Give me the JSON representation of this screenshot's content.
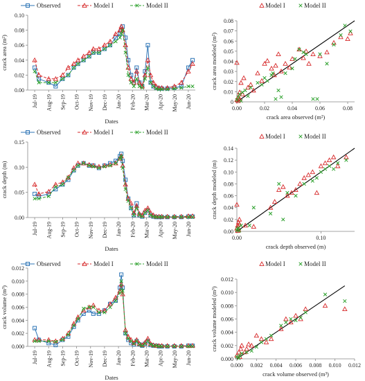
{
  "date_ticks": [
    "Jul-19",
    "Aug-19",
    "Sep-19",
    "Oct-19",
    "Nov-19",
    "Dec-19",
    "Jan-20",
    "Feb-20",
    "Mar-20",
    "Apr-20",
    "May-20",
    "Jun-20"
  ],
  "colors": {
    "observed": "#2e75b6",
    "model1": "#d62728",
    "model2": "#2ca02c",
    "fit": "#000000"
  },
  "legend": {
    "observed": "Observed",
    "model1": "Model I",
    "model2": "Model II"
  },
  "chart_data": [
    {
      "type": "line",
      "xlabel": "Dates",
      "ylabel": "crack area (m²)",
      "ylim": [
        0,
        0.1
      ],
      "yticks": [
        "0.00",
        "0.02",
        "0.04",
        "0.06",
        "0.08",
        "0.10"
      ],
      "x": [
        0,
        0.3,
        1,
        1.5,
        2,
        2.4,
        2.8,
        3.1,
        3.5,
        3.9,
        4.2,
        4.6,
        5,
        5.4,
        5.8,
        6.1,
        6.2,
        6.3,
        6.5,
        6.7,
        6.9,
        7.1,
        7.3,
        7.5,
        7.7,
        7.9,
        8.1,
        8.3,
        8.5,
        8.7,
        8.9,
        9.1,
        9.5,
        10,
        10.5,
        11,
        11.3
      ],
      "series": [
        {
          "name": "Observed",
          "values": [
            0.03,
            0.015,
            0.01,
            0.005,
            0.015,
            0.02,
            0.03,
            0.035,
            0.04,
            0.045,
            0.05,
            0.05,
            0.055,
            0.06,
            0.07,
            0.075,
            0.08,
            0.085,
            0.07,
            0.04,
            0.02,
            0.01,
            0.03,
            0.01,
            0.005,
            0.025,
            0.06,
            0.01,
            0.005,
            0.003,
            0.002,
            0.002,
            0.002,
            0.003,
            0.005,
            0.03,
            0.04
          ]
        },
        {
          "name": "Model I",
          "values": [
            0.04,
            0.02,
            0.015,
            0.015,
            0.02,
            0.03,
            0.035,
            0.04,
            0.045,
            0.05,
            0.055,
            0.055,
            0.06,
            0.065,
            0.075,
            0.08,
            0.085,
            0.08,
            0.06,
            0.03,
            0.015,
            0.01,
            0.025,
            0.01,
            0.005,
            0.02,
            0.04,
            0.02,
            0.01,
            0.005,
            0.003,
            0.003,
            0.003,
            0.005,
            0.01,
            0.025,
            0.035
          ]
        },
        {
          "name": "Model II",
          "values": [
            0.025,
            0.01,
            0.01,
            0.01,
            0.015,
            0.02,
            0.03,
            0.035,
            0.04,
            0.045,
            0.05,
            0.05,
            0.055,
            0.06,
            0.065,
            0.07,
            0.075,
            0.08,
            0.05,
            0.02,
            0.01,
            0.005,
            0.015,
            0.005,
            0.003,
            0.015,
            0.03,
            0.01,
            0.005,
            0.002,
            0.001,
            0.001,
            0.001,
            0.002,
            0.003,
            0.005,
            0.005
          ]
        }
      ]
    },
    {
      "type": "scatter",
      "xlabel": "crack area observed (m²)",
      "ylabel": "crack area modeled (m²)",
      "xlim": [
        0,
        0.085
      ],
      "ylim": [
        0,
        0.085
      ],
      "xticks": [
        "0.00",
        "0.02",
        "0.04",
        "0.06",
        "0.08"
      ],
      "yticks": [
        "0",
        "0.01",
        "0.02",
        "0.03",
        "0.04",
        "0.05",
        "0.06",
        "0.07",
        "0.08"
      ],
      "series": [
        {
          "name": "Model I",
          "x": [
            0,
            0,
            0.001,
            0.002,
            0.003,
            0.005,
            0.008,
            0.01,
            0.015,
            0.02,
            0.022,
            0.025,
            0.028,
            0.03,
            0.032,
            0.035,
            0.04,
            0.045,
            0.05,
            0.055,
            0.06,
            0.065,
            0.07,
            0.075,
            0.08,
            0.082,
            0.002,
            0.001,
            0.004,
            0.012,
            0.018,
            0.027,
            0.038,
            0.048,
            0.052
          ],
          "y": [
            0.041,
            0.002,
            0.005,
            0.01,
            0.02,
            0.025,
            0.015,
            0.018,
            0.03,
            0.04,
            0.043,
            0.035,
            0.038,
            0.05,
            0.032,
            0.04,
            0.045,
            0.055,
            0.053,
            0.05,
            0.048,
            0.052,
            0.062,
            0.068,
            0.066,
            0.072,
            0.003,
            0.001,
            0.008,
            0.012,
            0.022,
            0.028,
            0.036,
            0.046,
            0.04
          ]
        },
        {
          "name": "Model II",
          "x": [
            0,
            0.001,
            0.002,
            0.004,
            0.006,
            0.01,
            0.015,
            0.02,
            0.022,
            0.025,
            0.028,
            0.03,
            0.032,
            0.035,
            0.04,
            0.045,
            0.05,
            0.055,
            0.06,
            0.065,
            0.07,
            0.075,
            0.078,
            0.082,
            0.003,
            0.008,
            0.018,
            0.026,
            0.042,
            0.048,
            0.058
          ],
          "y": [
            0.002,
            0.005,
            0.008,
            0.01,
            0.012,
            0.015,
            0.02,
            0.025,
            0.022,
            0.028,
            0.003,
            0.012,
            0.005,
            0.03,
            0.035,
            0.055,
            0.05,
            0.003,
            0.05,
            0.04,
            0.06,
            0.07,
            0.08,
            0.074,
            0.001,
            0.006,
            0.018,
            0.03,
            0.045,
            0.052,
            0.003
          ]
        }
      ]
    },
    {
      "type": "line",
      "xlabel": "Dates",
      "ylabel": "crack depth (m)",
      "ylim": [
        0,
        0.16
      ],
      "yticks": [
        "0.00",
        "0.05",
        "0.10",
        "0.15"
      ],
      "x": [
        0,
        0.3,
        1,
        1.5,
        2,
        2.4,
        2.8,
        3.1,
        3.5,
        3.9,
        4.2,
        4.6,
        5,
        5.4,
        5.8,
        6.1,
        6.2,
        6.3,
        6.5,
        6.7,
        6.9,
        7.1,
        7.3,
        7.5,
        7.7,
        7.9,
        8.1,
        8.3,
        8.5,
        8.7,
        8.9,
        9.1,
        9.5,
        10,
        10.5,
        11,
        11.3
      ],
      "series": [
        {
          "name": "Observed",
          "values": [
            0.05,
            0.045,
            0.05,
            0.06,
            0.07,
            0.08,
            0.1,
            0.11,
            0.115,
            0.11,
            0.11,
            0.105,
            0.11,
            0.115,
            0.12,
            0.13,
            0.135,
            0.12,
            0.08,
            0.04,
            0.02,
            0.005,
            0.03,
            0.005,
            0.002,
            0.01,
            0.015,
            0.005,
            0.002,
            0.001,
            0.001,
            0.001,
            0.001,
            0.001,
            0.001,
            0.002,
            0.002
          ]
        },
        {
          "name": "Model I",
          "values": [
            0.07,
            0.05,
            0.055,
            0.07,
            0.075,
            0.085,
            0.105,
            0.115,
            0.115,
            0.112,
            0.11,
            0.108,
            0.11,
            0.112,
            0.115,
            0.125,
            0.13,
            0.11,
            0.07,
            0.04,
            0.03,
            0.01,
            0.025,
            0.008,
            0.005,
            0.015,
            0.02,
            0.01,
            0.005,
            0.002,
            0.002,
            0.002,
            0.002,
            0.002,
            0.002,
            0.003,
            0.003
          ]
        },
        {
          "name": "Model II",
          "values": [
            0.04,
            0.04,
            0.045,
            0.065,
            0.07,
            0.085,
            0.1,
            0.11,
            0.115,
            0.11,
            0.108,
            0.105,
            0.108,
            0.11,
            0.115,
            0.125,
            0.13,
            0.105,
            0.06,
            0.035,
            0.02,
            0.005,
            0.02,
            0.005,
            0.002,
            0.01,
            0.015,
            0.005,
            0.002,
            0.001,
            0.001,
            0.001,
            0.001,
            0.001,
            0.001,
            0.001,
            0.001
          ]
        }
      ]
    },
    {
      "type": "scatter",
      "xlabel": "crack depth observed (m)",
      "ylabel": "crack depth modeled (m)",
      "xlim": [
        0,
        0.14
      ],
      "ylim": [
        0,
        0.14
      ],
      "xticks": [
        "0.00",
        "0.10"
      ],
      "yticks": [
        "0.00",
        "0.02",
        "0.04",
        "0.06",
        "0.08",
        "0.10",
        "0.12",
        "0.14"
      ],
      "series": [
        {
          "name": "Model I",
          "x": [
            0,
            0,
            0.001,
            0.002,
            0.003,
            0.01,
            0.02,
            0.04,
            0.045,
            0.05,
            0.055,
            0.06,
            0.065,
            0.07,
            0.075,
            0.08,
            0.085,
            0.09,
            0.095,
            0.1,
            0.105,
            0.11,
            0.115,
            0.12,
            0.13,
            0.002,
            0.001,
            0.003
          ],
          "y": [
            0.045,
            0.005,
            0.01,
            0.015,
            0.02,
            0.01,
            0.008,
            0.04,
            0.05,
            0.07,
            0.075,
            0.06,
            0.065,
            0.07,
            0.08,
            0.09,
            0.095,
            0.1,
            0.065,
            0.11,
            0.115,
            0.12,
            0.125,
            0.11,
            0.125,
            0.003,
            0.001,
            0.012
          ]
        },
        {
          "name": "Model II",
          "x": [
            0,
            0.001,
            0.002,
            0.005,
            0.015,
            0.02,
            0.04,
            0.05,
            0.055,
            0.06,
            0.07,
            0.08,
            0.09,
            0.095,
            0.1,
            0.105,
            0.11,
            0.115,
            0.12,
            0.13,
            0.003
          ],
          "y": [
            0.002,
            0.004,
            0.006,
            0.01,
            0.01,
            0.04,
            0.03,
            0.08,
            0.02,
            0.065,
            0.06,
            0.08,
            0.085,
            0.09,
            0.1,
            0.105,
            0.11,
            0.105,
            0.115,
            0.12,
            0.001
          ]
        }
      ]
    },
    {
      "type": "line",
      "xlabel": "Dates",
      "ylabel": "crack volume (m³)",
      "ylim": [
        0,
        0.012
      ],
      "yticks": [
        "0.000",
        "0.002",
        "0.004",
        "0.006",
        "0.008",
        "0.010",
        "0.012"
      ],
      "x": [
        0,
        0.3,
        1,
        1.5,
        2,
        2.4,
        2.8,
        3.1,
        3.5,
        3.9,
        4.2,
        4.6,
        5,
        5.4,
        5.8,
        6.1,
        6.2,
        6.3,
        6.5,
        6.7,
        6.9,
        7.1,
        7.3,
        7.5,
        7.7,
        7.9,
        8.1,
        8.3,
        8.5,
        8.7,
        8.9,
        9.1,
        9.5,
        10,
        10.5,
        11,
        11.3
      ],
      "series": [
        {
          "name": "Observed",
          "values": [
            0.0028,
            0.001,
            0.0005,
            0.0002,
            0.001,
            0.0015,
            0.003,
            0.004,
            0.005,
            0.0055,
            0.005,
            0.005,
            0.0055,
            0.0065,
            0.007,
            0.009,
            0.011,
            0.009,
            0.002,
            0.001,
            0.0005,
            0.0003,
            0.0008,
            0.0003,
            0.0001,
            0.0004,
            0.0008,
            0.0002,
            0.0001,
            0.0001,
            0.0,
            0.0,
            0.0,
            0.0,
            0.0,
            0.0001,
            0.0001
          ]
        },
        {
          "name": "Model I",
          "values": [
            0.001,
            0.001,
            0.001,
            0.0008,
            0.0012,
            0.002,
            0.0035,
            0.0045,
            0.0055,
            0.006,
            0.0063,
            0.0055,
            0.0055,
            0.0065,
            0.0075,
            0.0085,
            0.0095,
            0.008,
            0.0025,
            0.0015,
            0.001,
            0.0005,
            0.001,
            0.0004,
            0.0002,
            0.0006,
            0.0012,
            0.0004,
            0.0002,
            0.0001,
            0.0001,
            0.0001,
            0.0001,
            0.0001,
            0.0001,
            0.0001,
            0.0001
          ]
        },
        {
          "name": "Model II",
          "values": [
            0.0008,
            0.0008,
            0.0008,
            0.0007,
            0.001,
            0.0018,
            0.0032,
            0.0042,
            0.0058,
            0.006,
            0.006,
            0.0052,
            0.0052,
            0.006,
            0.007,
            0.0082,
            0.01,
            0.0085,
            0.002,
            0.0012,
            0.0008,
            0.0004,
            0.0008,
            0.0003,
            0.0001,
            0.0004,
            0.0008,
            0.0003,
            0.0001,
            0.0001,
            0.0,
            0.0,
            0.0,
            0.0,
            0.0,
            0.0,
            0.0
          ]
        }
      ]
    },
    {
      "type": "scatter",
      "xlabel": "crack volume observed (m³)",
      "ylabel": "crack volume modeled (m³)",
      "xlim": [
        0,
        0.012
      ],
      "ylim": [
        0,
        0.012
      ],
      "xticks": [
        "0.000",
        "0.002",
        "0.004",
        "0.006",
        "0.008",
        "0.010",
        "0.012"
      ],
      "yticks": [
        "0.000",
        "0.002",
        "0.004",
        "0.006",
        "0.008",
        "0.010",
        "0.012"
      ],
      "series": [
        {
          "name": "Model I",
          "x": [
            0,
            0.0002,
            0.0004,
            0.0005,
            0.0008,
            0.001,
            0.0015,
            0.002,
            0.0025,
            0.003,
            0.0035,
            0.0045,
            0.005,
            0.0055,
            0.006,
            0.0065,
            0.007,
            0.009,
            0.011,
            0.0003,
            0.0012
          ],
          "y": [
            0.0005,
            0.001,
            0.0015,
            0.002,
            0.001,
            0.0015,
            0.002,
            0.0035,
            0.003,
            0.0025,
            0.003,
            0.0045,
            0.006,
            0.0055,
            0.0065,
            0.006,
            0.0075,
            0.008,
            0.0075,
            0.0003,
            0.0022
          ]
        },
        {
          "name": "Model II",
          "x": [
            0,
            0.0003,
            0.0005,
            0.001,
            0.0015,
            0.002,
            0.0025,
            0.003,
            0.0035,
            0.0045,
            0.005,
            0.0055,
            0.006,
            0.0065,
            0.007,
            0.009,
            0.011,
            0.0002
          ],
          "y": [
            0.0003,
            0.0005,
            0.0008,
            0.001,
            0.0012,
            0.0018,
            0.0025,
            0.003,
            0.0035,
            0.005,
            0.0055,
            0.006,
            0.0058,
            0.0062,
            0.007,
            0.0097,
            0.0087,
            0.0001
          ]
        }
      ]
    }
  ]
}
